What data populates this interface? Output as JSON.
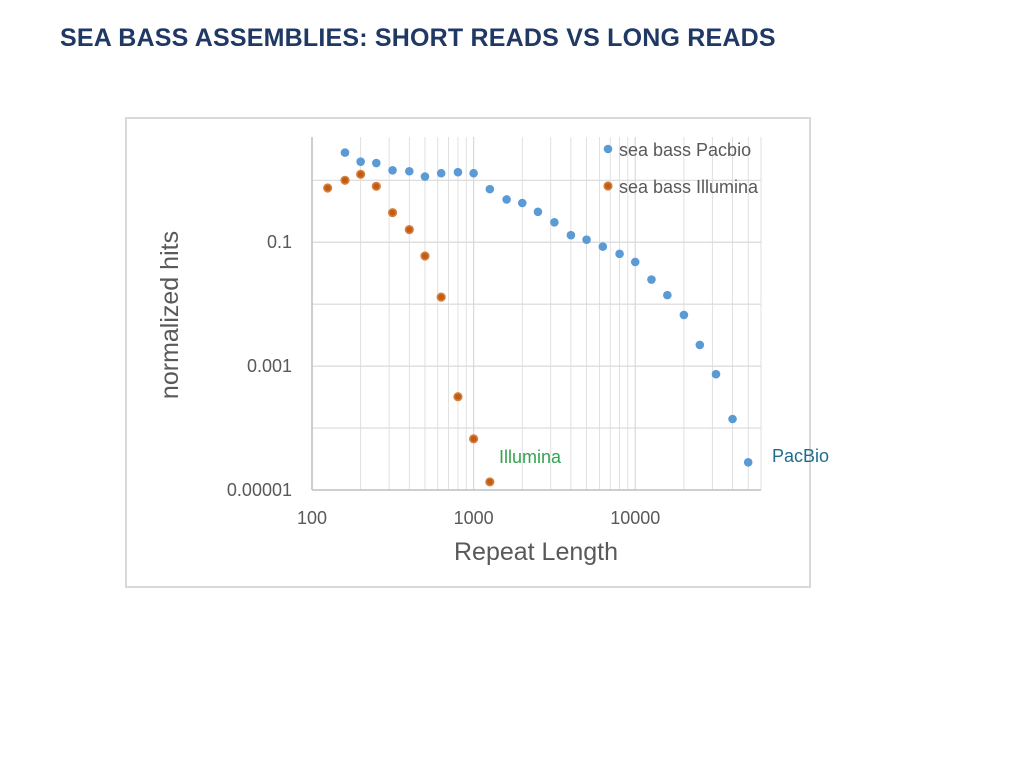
{
  "slide": {
    "title": "SEA BASS ASSEMBLIES: SHORT READS VS LONG READS"
  },
  "colors": {
    "pacbio": "#5b9bd5",
    "illumina": "#c55a11",
    "illumina_edge": "#d2823f",
    "grid": "#d9d9d9",
    "axis": "#bfbfbf",
    "illumina_annotation": "#33a34f",
    "pacbio_annotation": "#1f6d8c"
  },
  "chart_data": {
    "type": "scatter",
    "title": "",
    "xlabel": "Repeat Length",
    "ylabel": "normalized hits",
    "x_scale": "log",
    "y_scale": "log",
    "xlim": [
      100,
      60000
    ],
    "ylim": [
      1e-05,
      5
    ],
    "x_ticks": [
      {
        "value": 100,
        "label": "100"
      },
      {
        "value": 1000,
        "label": "1000"
      },
      {
        "value": 10000,
        "label": "10000"
      }
    ],
    "y_ticks": [
      {
        "value": 1e-05,
        "label": "0.00001"
      },
      {
        "value": 0.001,
        "label": "0.001"
      },
      {
        "value": 0.1,
        "label": "0.1"
      }
    ],
    "grid": true,
    "legend_position": "top-right",
    "series": [
      {
        "name": "sea bass Pacbio",
        "x": [
          160,
          200,
          250,
          315,
          400,
          500,
          630,
          800,
          1000,
          1260,
          1600,
          2000,
          2500,
          3160,
          4000,
          5000,
          6300,
          8000,
          10000,
          12600,
          15800,
          20000,
          25100,
          31600,
          40000,
          50000
        ],
        "y": [
          2.8,
          2.0,
          1.9,
          1.45,
          1.4,
          1.15,
          1.3,
          1.35,
          1.3,
          0.72,
          0.49,
          0.43,
          0.31,
          0.21,
          0.13,
          0.11,
          0.085,
          0.065,
          0.048,
          0.025,
          0.014,
          0.0067,
          0.0022,
          0.00074,
          0.00014,
          2.8e-05
        ]
      },
      {
        "name": "sea bass Illumina",
        "x": [
          125,
          160,
          200,
          250,
          315,
          400,
          500,
          630,
          800,
          1000,
          1260
        ],
        "y": [
          0.75,
          1.0,
          1.25,
          0.8,
          0.3,
          0.16,
          0.06,
          0.013,
          0.00032,
          6.7e-05,
          1.35e-05
        ]
      }
    ],
    "annotations": [
      {
        "text": "Illumina",
        "series": "sea bass Illumina"
      },
      {
        "text": "PacBio",
        "series": "sea bass Pacbio"
      }
    ]
  }
}
